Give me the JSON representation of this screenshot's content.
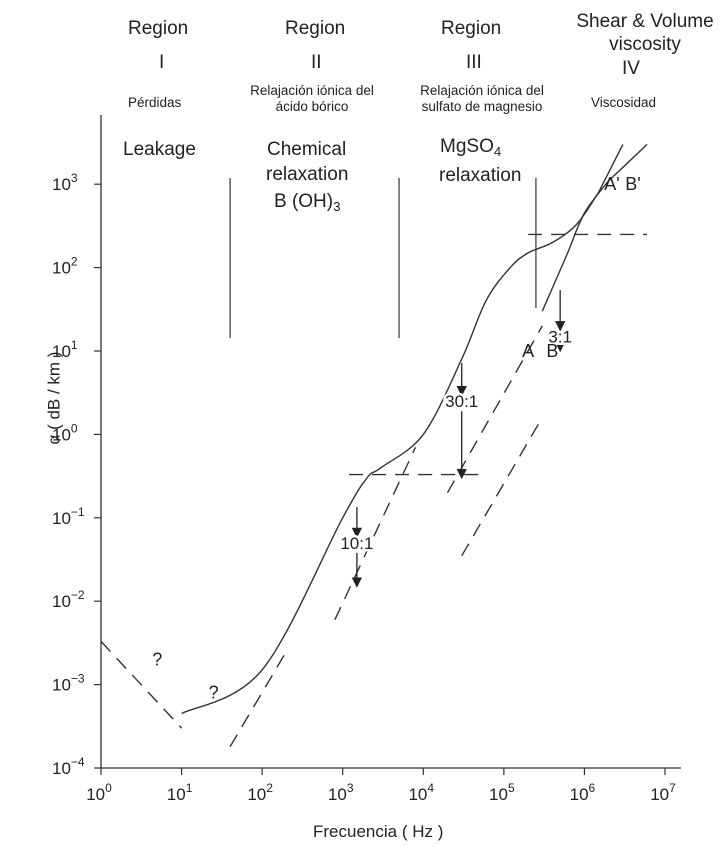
{
  "chart_data": {
    "type": "line",
    "xlabel": "Frecuencia ( Hz )",
    "ylabel": "α ( dB / km )",
    "xscale": "log",
    "yscale": "log",
    "xlim": [
      1,
      10000000
    ],
    "ylim": [
      0.0001,
      3000
    ],
    "x_ticks": [
      {
        "value": 1,
        "base": "10",
        "exp": "0"
      },
      {
        "value": 10,
        "base": "10",
        "exp": "1"
      },
      {
        "value": 100,
        "base": "10",
        "exp": "2"
      },
      {
        "value": 1000,
        "base": "10",
        "exp": "3"
      },
      {
        "value": 10000,
        "base": "10",
        "exp": "4"
      },
      {
        "value": 100000,
        "base": "10",
        "exp": "5"
      },
      {
        "value": 1000000,
        "base": "10",
        "exp": "6"
      },
      {
        "value": 10000000,
        "base": "10",
        "exp": "7"
      }
    ],
    "y_ticks": [
      {
        "value": 0.0001,
        "base": "10",
        "exp": "−4"
      },
      {
        "value": 0.001,
        "base": "10",
        "exp": "−3"
      },
      {
        "value": 0.01,
        "base": "10",
        "exp": "−2"
      },
      {
        "value": 0.1,
        "base": "10",
        "exp": "−1"
      },
      {
        "value": 1,
        "base": "10",
        "exp": "0"
      },
      {
        "value": 10,
        "base": "10",
        "exp": "1"
      },
      {
        "value": 100,
        "base": "10",
        "exp": "2"
      },
      {
        "value": 1000,
        "base": "10",
        "exp": "3"
      }
    ],
    "grid": false,
    "regions": [
      {
        "title": "Region",
        "numeral": "I",
        "spanish": "Pérdidas",
        "english": [
          "Leakage"
        ]
      },
      {
        "title": "Region",
        "numeral": "II",
        "spanish": "Relajación iónica del ácido bórico",
        "english": [
          "Chemical",
          "relaxation",
          "B (OH)3"
        ]
      },
      {
        "title": "Region",
        "numeral": "III",
        "spanish": "Relajación iónica del sulfato de magnesio",
        "english": [
          "MgSO4",
          "relaxation"
        ]
      },
      {
        "title": "Shear & Volume viscosity",
        "numeral": "IV",
        "spanish": "Viscosidad",
        "english": []
      }
    ],
    "region_boundaries_hz": [
      40,
      5000,
      250000
    ],
    "series": [
      {
        "label": "A",
        "style": "solid",
        "points": [
          [
            10,
            0.00045
          ],
          [
            100,
            0.0015
          ],
          [
            1000,
            0.1
          ],
          [
            2000,
            0.3
          ],
          [
            3000,
            0.4
          ],
          [
            10000,
            1.0
          ],
          [
            30000,
            8
          ],
          [
            60000,
            40
          ],
          [
            120000,
            100
          ],
          [
            200000,
            150
          ],
          [
            400000,
            200
          ],
          [
            800000,
            330
          ],
          [
            1500000,
            800
          ]
        ]
      },
      {
        "label": "A'",
        "style": "solid",
        "points": [
          [
            1500000,
            800
          ],
          [
            3000000,
            3000
          ]
        ]
      },
      {
        "label": "B",
        "style": "solid",
        "points": [
          [
            300000,
            30
          ],
          [
            600000,
            140
          ],
          [
            1000000,
            450
          ],
          [
            2000000,
            1100
          ]
        ]
      },
      {
        "label": "B'",
        "style": "solid",
        "points": [
          [
            2000000,
            1100
          ],
          [
            6000000,
            3000
          ]
        ]
      },
      {
        "label": "",
        "style": "dashed",
        "points": [
          [
            1,
            0.0033
          ],
          [
            10,
            0.0003
          ]
        ]
      },
      {
        "label": "",
        "style": "dashed",
        "points": [
          [
            40,
            0.00018
          ],
          [
            200,
            0.0025
          ]
        ]
      },
      {
        "label": "",
        "style": "dashed",
        "points": [
          [
            800,
            0.006
          ],
          [
            8000,
            0.7
          ]
        ]
      },
      {
        "label": "",
        "style": "dashed",
        "points": [
          [
            1200,
            0.33
          ],
          [
            60000,
            0.33
          ]
        ]
      },
      {
        "label": "",
        "style": "dashed",
        "points": [
          [
            20000,
            0.2
          ],
          [
            300000,
            20
          ]
        ]
      },
      {
        "label": "",
        "style": "dashed",
        "points": [
          [
            30000,
            0.035
          ],
          [
            300000,
            1.6
          ]
        ]
      },
      {
        "label": "",
        "style": "dashed",
        "points": [
          [
            200000,
            250
          ],
          [
            6000000,
            250
          ]
        ]
      }
    ],
    "annotations": [
      {
        "text": "?",
        "x": 5,
        "y": 0.002
      },
      {
        "text": "?",
        "x": 25,
        "y": 0.0008
      },
      {
        "text": "10:1",
        "x": 1500,
        "y": 0.05,
        "arrow_from": 0.15,
        "arrow_to": 0.015
      },
      {
        "text": "30:1",
        "x": 30000,
        "y": 2.5,
        "arrow_from": 8,
        "arrow_to": 0.3
      },
      {
        "text": "3:1",
        "x": 500000,
        "y": 15,
        "arrow_from": 60,
        "arrow_to": 10
      },
      {
        "text": "A",
        "x": 200000,
        "y": 10
      },
      {
        "text": "B",
        "x": 400000,
        "y": 10
      },
      {
        "text": "A'",
        "x": 2200000,
        "y": 1000
      },
      {
        "text": "B'",
        "x": 4000000,
        "y": 1000
      }
    ]
  }
}
